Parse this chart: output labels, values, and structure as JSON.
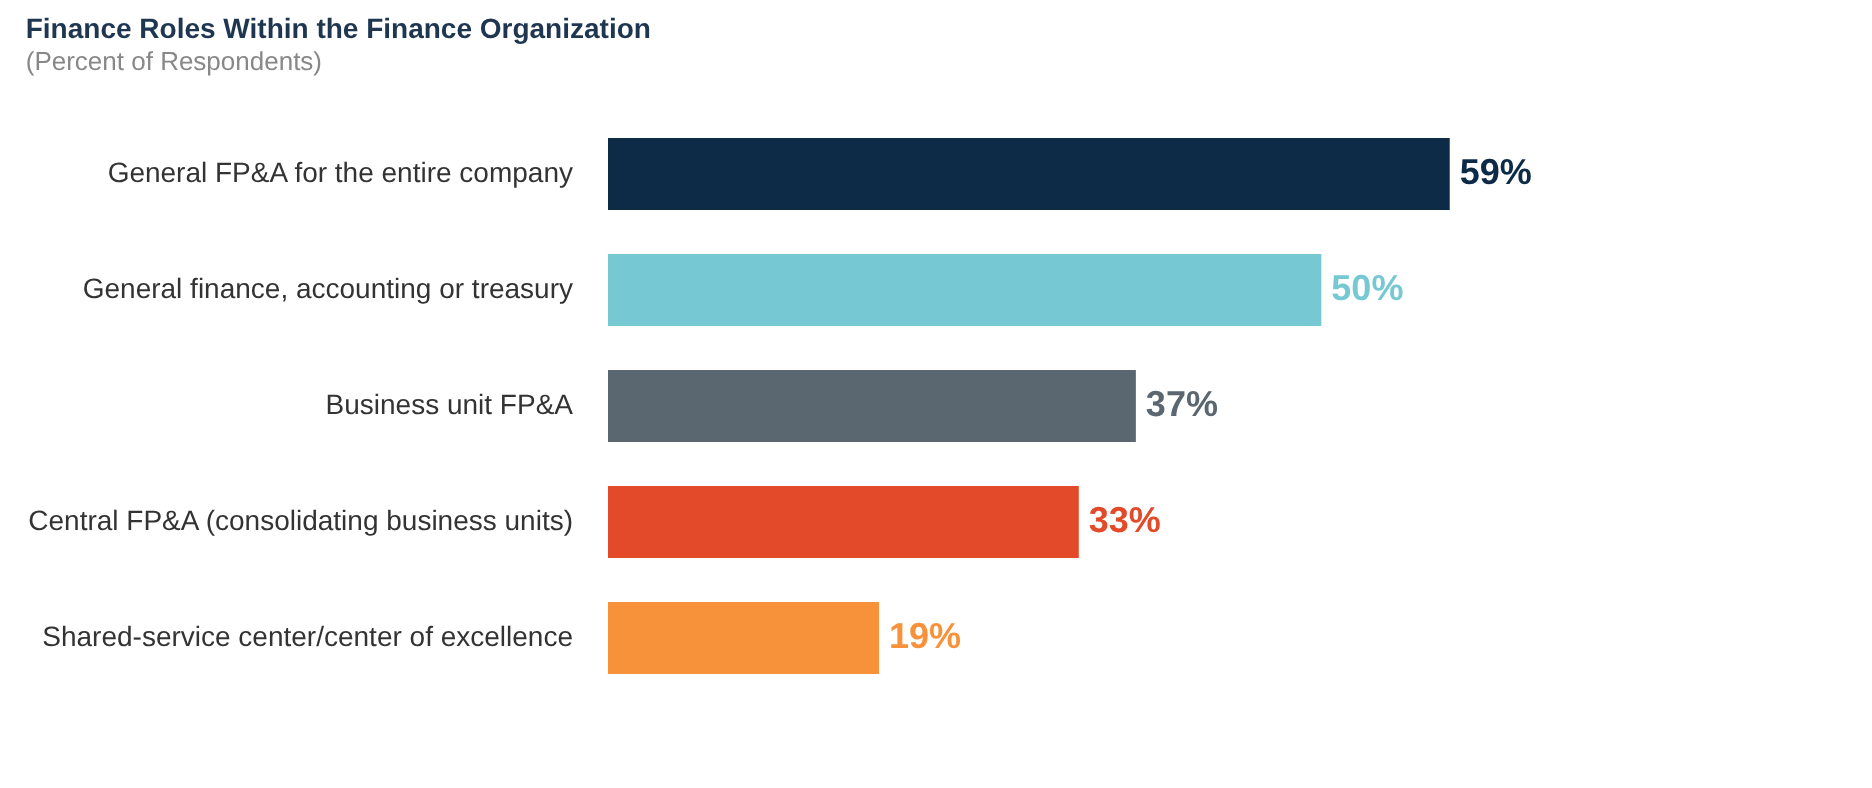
{
  "chart_data": {
    "type": "bar",
    "orientation": "horizontal",
    "title": "Finance Roles Within the Finance Organization",
    "subtitle": "(Percent of Respondents)",
    "categories": [
      "General FP&A for the entire company",
      "General finance, accounting or treasury",
      "Business unit FP&A",
      "Central FP&A (consolidating business units)",
      "Shared-service center/center of excellence"
    ],
    "values": [
      59,
      50,
      37,
      33,
      19
    ],
    "colors": [
      "#0d2a47",
      "#76c9d3",
      "#5a6770",
      "#e24a2a",
      "#f7923a"
    ],
    "value_labels": [
      "59%",
      "50%",
      "37%",
      "33%",
      "19%"
    ],
    "tick_labels": "y",
    "grid": false
  }
}
